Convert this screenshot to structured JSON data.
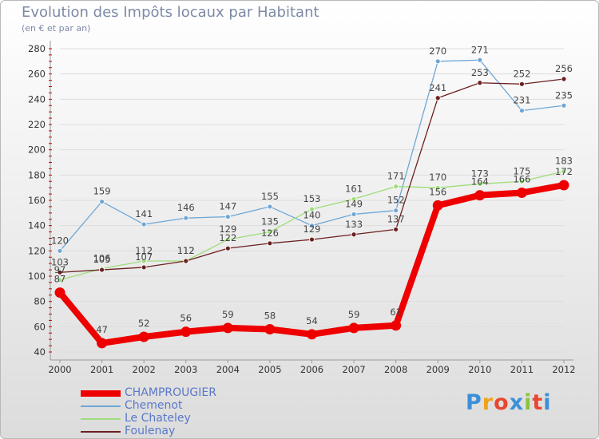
{
  "title": "Evolution des Impôts locaux par Habitant",
  "subtitle": "(en € et par an)",
  "logo": "Proxiti",
  "colors": {
    "CHAMPROUGIER": "#ee0000",
    "Chemenot": "#6ea7d6",
    "Le Chateley": "#9edd7a",
    "Foulenay": "#6b2020",
    "axis": "#999999",
    "grid": "#dddddd"
  },
  "chart_data": {
    "type": "line",
    "title": "Evolution des Impôts locaux par Habitant",
    "ylabel": "(en € et par an)",
    "xlabel": "",
    "ylim": [
      40,
      280
    ],
    "yticks": [
      40,
      60,
      80,
      100,
      120,
      140,
      160,
      180,
      200,
      220,
      240,
      260,
      280
    ],
    "categories": [
      "2000",
      "2001",
      "2002",
      "2003",
      "2004",
      "2005",
      "2006",
      "2007",
      "2008",
      "2009",
      "2010",
      "2011",
      "2012"
    ],
    "series": [
      {
        "name": "CHAMPROUGIER",
        "values": [
          87,
          47,
          52,
          56,
          59,
          58,
          54,
          59,
          61,
          156,
          164,
          166,
          172
        ]
      },
      {
        "name": "Chemenot",
        "values": [
          120,
          159,
          141,
          146,
          147,
          155,
          140,
          149,
          152,
          270,
          271,
          231,
          235
        ]
      },
      {
        "name": "Le Chateley",
        "values": [
          97,
          106,
          112,
          112,
          129,
          135,
          153,
          161,
          171,
          170,
          173,
          175,
          183
        ]
      },
      {
        "name": "Foulenay",
        "values": [
          103,
          105,
          107,
          112,
          122,
          126,
          129,
          133,
          137,
          241,
          253,
          252,
          256
        ]
      }
    ]
  }
}
